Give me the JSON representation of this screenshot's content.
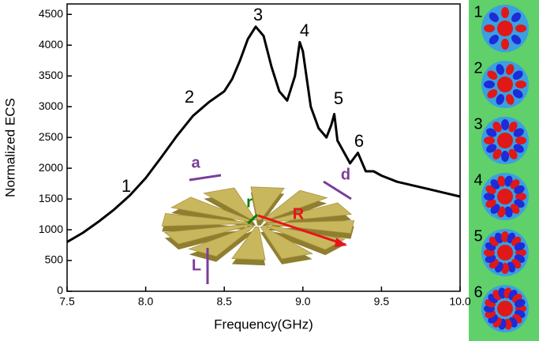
{
  "chart_data": {
    "type": "line",
    "x_label": "Frequency(GHz)",
    "y_label": "Normalized ECS",
    "x": [
      7.5,
      7.6,
      7.7,
      7.8,
      7.9,
      8.0,
      8.1,
      8.2,
      8.3,
      8.4,
      8.5,
      8.55,
      8.6,
      8.65,
      8.7,
      8.75,
      8.8,
      8.85,
      8.9,
      8.95,
      8.98,
      9.0,
      9.05,
      9.1,
      9.15,
      9.18,
      9.2,
      9.22,
      9.3,
      9.35,
      9.4,
      9.45,
      9.5,
      9.6,
      9.7,
      9.8,
      9.9,
      10.0
    ],
    "values": [
      800,
      950,
      1130,
      1330,
      1560,
      1840,
      2180,
      2530,
      2850,
      3070,
      3250,
      3450,
      3750,
      4100,
      4300,
      4150,
      3650,
      3250,
      3100,
      3500,
      4050,
      3900,
      3000,
      2650,
      2500,
      2700,
      2880,
      2450,
      2080,
      2250,
      1950,
      1950,
      1880,
      1780,
      1720,
      1660,
      1600,
      1540
    ],
    "color": "#000000",
    "xlim": [
      7.5,
      10.0
    ],
    "xticks": [
      7.5,
      {
        "value": 8,
        "label": "8.0"
      },
      8.5,
      {
        "value": 9,
        "label": "9.0"
      },
      9.5,
      {
        "value": 10,
        "label": "10.0"
      }
    ],
    "ylim": [
      0,
      4670
    ],
    "yticks": [
      0,
      500,
      1000,
      1500,
      2000,
      2500,
      3000,
      3500,
      4000,
      4500
    ],
    "annotations": [
      "1",
      "2",
      "3",
      "4",
      "5",
      "6"
    ],
    "inset_labels": [
      "a",
      "d",
      "r",
      "R",
      "L"
    ],
    "mode_labels": [
      "1",
      "2",
      "3",
      "4",
      "5",
      "6"
    ]
  }
}
